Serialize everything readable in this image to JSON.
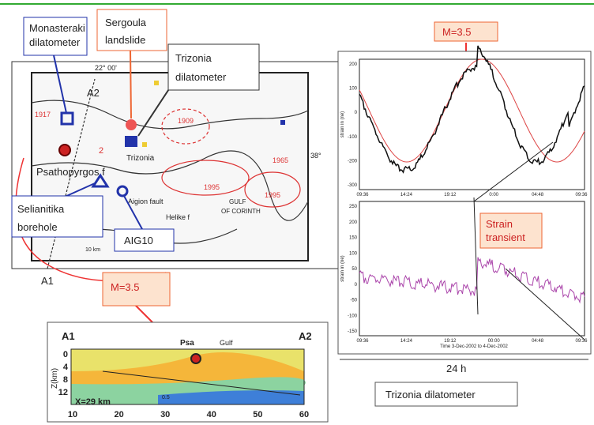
{
  "callouts": {
    "monasteraki": [
      "Monasteraki",
      "dilatometer"
    ],
    "sergoula": [
      "Sergoula",
      "landslide"
    ],
    "trizonia": [
      "Trizonia",
      "dilatometer"
    ],
    "selianitika": [
      "Selianitika",
      "borehole"
    ],
    "aig10": "AIG10",
    "magnitude_map": "M=3.5",
    "magnitude_plot": "M=3.5",
    "strain_transient": [
      "Strain",
      "transient"
    ],
    "duration": "24 h",
    "trizonia_caption": "Trizonia dilatometer"
  },
  "map": {
    "longitude": "22° 00'",
    "latitude": "38°",
    "profile_start": "A1",
    "profile_end": "A2",
    "fault_psathopyrgos": "Psathopyrgos f",
    "trizonia": "Trizonia",
    "quake_1909": "1909",
    "quake_1965": "1965",
    "quake_1995a": "1995",
    "quake_1995b": "1995",
    "quake_1917": "1917",
    "site_2": "2",
    "aigion_fault": "Aigion fault",
    "helike_fault": "Helike f",
    "gulf": [
      "GULF",
      "OF CORINTH"
    ],
    "scale": "10 km"
  },
  "strain_top": {
    "ylabel": "strain in (ne)",
    "yticks": [
      "200",
      "100",
      "0",
      "-100",
      "-200",
      "-300"
    ],
    "xticks": [
      "09:36",
      "14:24",
      "19:12",
      "0:00",
      "04:48",
      "09:36"
    ]
  },
  "strain_bottom": {
    "ylabel": "strain in (ne)",
    "yticks": [
      "250",
      "200",
      "150",
      "100",
      "50",
      "0",
      "-50",
      "-100",
      "-150"
    ],
    "xticks": [
      "09:36",
      "14:24",
      "19:12",
      "00:00",
      "04:48",
      "09:36"
    ],
    "xlabel": "Time 3-Dec-2002 to 4-Dec-2002"
  },
  "section": {
    "start": "A1",
    "end": "A2",
    "station": "Psa",
    "gulf": "Gulf",
    "ylabel": "Z(km)",
    "yticks": [
      "0",
      "4",
      "8",
      "12"
    ],
    "xticks": [
      "10",
      "20",
      "30",
      "40",
      "50",
      "60"
    ],
    "distance": "X=29 km",
    "contour": "0.5"
  }
}
